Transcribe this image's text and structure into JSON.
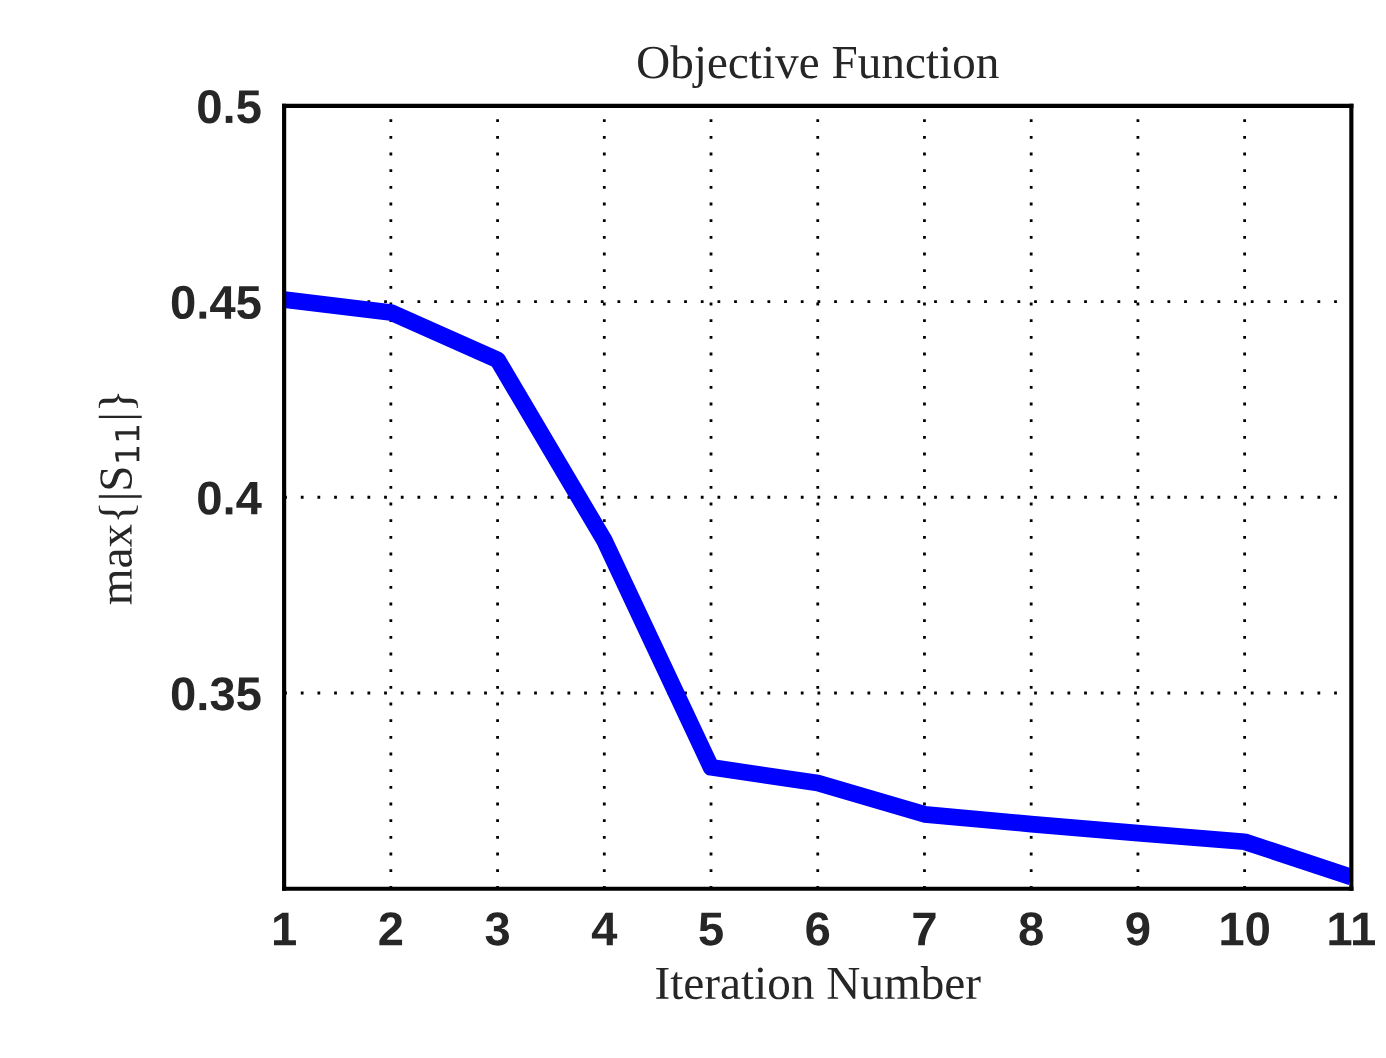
{
  "chart_data": {
    "type": "line",
    "title": "Objective Function",
    "xlabel": "Iteration Number",
    "ylabel": "max{|S$_{11}$|}",
    "x": [
      1,
      2,
      3,
      4,
      5,
      6,
      7,
      8,
      9,
      10,
      11
    ],
    "series": [
      {
        "color": "#0000ff",
        "values": [
          0.4505,
          0.4472,
          0.4351,
          0.389,
          0.331,
          0.327,
          0.319,
          0.3165,
          0.3142,
          0.312,
          0.303
        ]
      }
    ],
    "xlim": [
      1,
      11
    ],
    "xticks": [
      1,
      2,
      3,
      4,
      5,
      6,
      7,
      8,
      9,
      10,
      11
    ],
    "ylim": [
      0.3,
      0.5
    ],
    "yticks": [
      0.35,
      0.4,
      0.45,
      0.5
    ],
    "grid": true,
    "line_style": "solid"
  }
}
